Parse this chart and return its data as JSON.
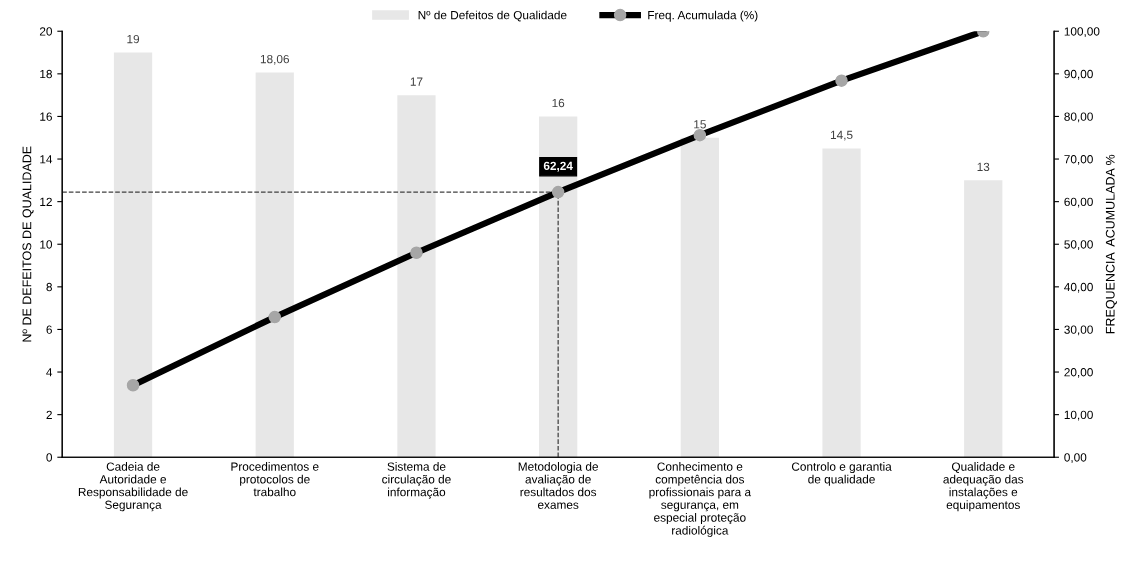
{
  "chart_data": {
    "type": "bar",
    "categories": [
      "Cadeia de\nAutoridade e\nResponsabilidade de\nSegurança",
      "Procedimentos e\nprotocolos de\ntrabalho",
      "Sistema de\ncirculação de\ninformação",
      "Metodologia de\navaliação de\nresultados dos\nexames",
      "Conhecimento e\ncompetência dos\nprofissionais para a\nsegurança, em\nespecial proteção\nradiológica",
      "Controlo e garantia\nde qualidade",
      "Qualidade e\nadequação das\ninstalações e\nequipamentos"
    ],
    "series": [
      {
        "name": "Nº de Defeitos de Qualidade",
        "color": "#e7e7e7",
        "values": [
          19,
          18.06,
          17,
          16,
          15,
          14.5,
          13
        ],
        "value_labels": [
          "19",
          "18,06",
          "17",
          "16",
          "15",
          "14,5",
          "13"
        ]
      },
      {
        "name": "Freq. Acumulada (%)",
        "type": "line",
        "axis": "y2",
        "color": "#000000",
        "marker": "circle",
        "line_style": "solid",
        "values": [
          16.9,
          32.9,
          48.0,
          62.24,
          75.6,
          88.4,
          100
        ],
        "value_labels": [
          null,
          null,
          null,
          "62,24",
          null,
          null,
          null
        ]
      }
    ],
    "ylabel": "Nº DE DEFEITOS DE QUALIDADE",
    "y2label": "FREQUENCIA  ACUMULADA %",
    "ylim": [
      0,
      20
    ],
    "yticks": [
      0,
      2,
      4,
      6,
      8,
      10,
      12,
      14,
      16,
      18,
      20
    ],
    "y2lim": [
      0,
      100
    ],
    "y2ticks": [
      {
        "value": 0,
        "label": "0,00"
      },
      {
        "value": 10,
        "label": "10,00"
      },
      {
        "value": 20,
        "label": "20,00"
      },
      {
        "value": 30,
        "label": "30,00"
      },
      {
        "value": 40,
        "label": "40,00"
      },
      {
        "value": 50,
        "label": "50,00"
      },
      {
        "value": 60,
        "label": "60,00"
      },
      {
        "value": 70,
        "label": "70,00"
      },
      {
        "value": 80,
        "label": "80,00"
      },
      {
        "value": 90,
        "label": "90,00"
      },
      {
        "value": 100,
        "label": "100,00"
      }
    ],
    "ref_lines": [
      {
        "axis": "y2",
        "value": 62.24,
        "line_style": "dashed",
        "color": "#404040"
      },
      {
        "axis": "x",
        "value": "Metodologia de\navaliação de\nresultados dos\nexames",
        "line_style": "dashed",
        "color": "#404040"
      }
    ],
    "legend": "top",
    "grid": false
  }
}
